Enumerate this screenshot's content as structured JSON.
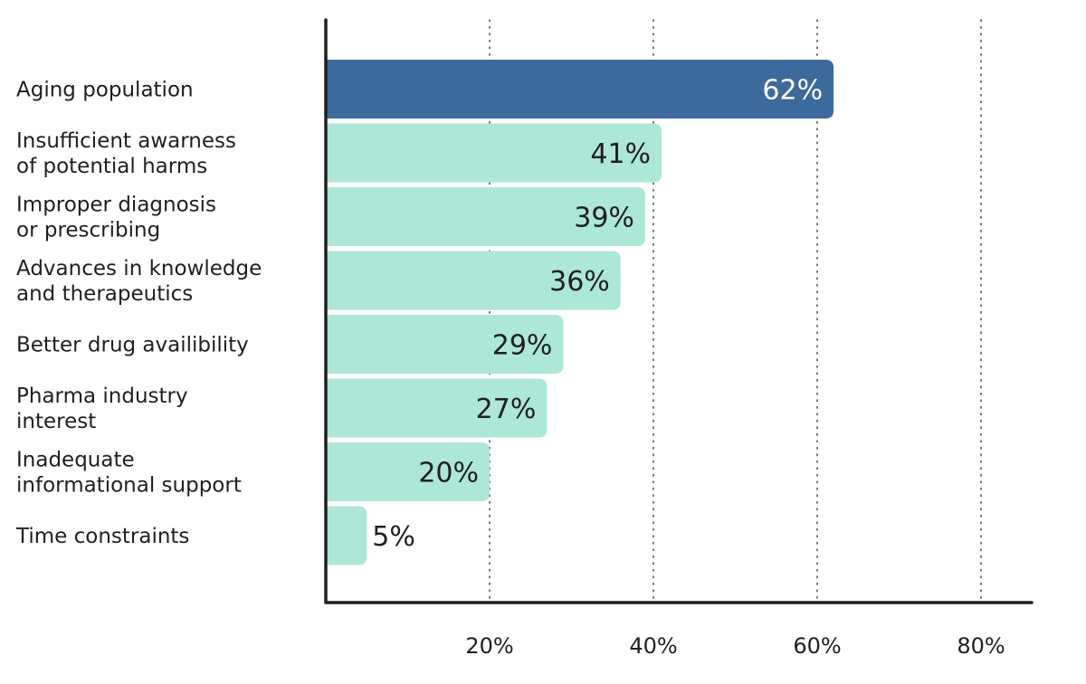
{
  "chart_data": {
    "type": "bar",
    "orientation": "horizontal",
    "categories": [
      [
        "Aging population"
      ],
      [
        "Insufficient awarness",
        "of potential harms"
      ],
      [
        "Improper diagnosis",
        "or prescribing"
      ],
      [
        "Advances in knowledge",
        "and therapeutics"
      ],
      [
        "Better drug availibility"
      ],
      [
        "Pharma industry",
        "interest"
      ],
      [
        "Inadequate",
        "informational support"
      ],
      [
        "Time constraints"
      ]
    ],
    "values": [
      62,
      41,
      39,
      36,
      29,
      27,
      20,
      5
    ],
    "value_labels": [
      "62%",
      "41%",
      "39%",
      "36%",
      "29%",
      "27%",
      "20%",
      "5%"
    ],
    "xlim": [
      0,
      86
    ],
    "xticks": [
      20,
      40,
      60,
      80
    ],
    "xtick_labels": [
      "20%",
      "40%",
      "60%",
      "80%"
    ],
    "grid": "vertical-dotted",
    "title": "",
    "xlabel": "",
    "ylabel": "",
    "colors": {
      "highlight_bar": "#3c6a9c",
      "bar": "#ade7d7",
      "highlight_text": "#ffffff",
      "text": "#1f1f1f",
      "axis": "#1f1f1f",
      "grid": "#555555"
    }
  }
}
